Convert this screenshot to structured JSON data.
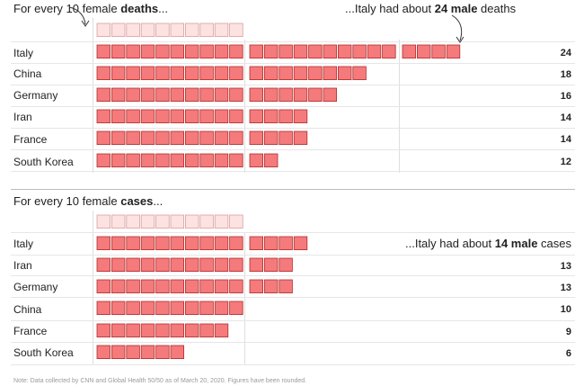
{
  "colors": {
    "male_fill": "#f47a7b",
    "male_stroke": "#b22d2d",
    "female_fill": "#fde2e2",
    "female_stroke": "#d9a0a0"
  },
  "chart_data": [
    {
      "type": "bar",
      "intro_prefix": "For every 10 female ",
      "intro_bold": "deaths",
      "intro_suffix": "...",
      "female_baseline": 10,
      "annotation": {
        "prefix": "...Italy had about ",
        "bold": "24 male",
        "suffix": " deaths"
      },
      "categories": [
        "Italy",
        "China",
        "Germany",
        "Iran",
        "France",
        "South Korea"
      ],
      "values": [
        24,
        18,
        16,
        14,
        14,
        12
      ],
      "value_labels": [
        "24",
        "18",
        "16",
        "14",
        "14",
        "12"
      ]
    },
    {
      "type": "bar",
      "intro_prefix": "For every 10 female ",
      "intro_bold": "cases",
      "intro_suffix": "...",
      "female_baseline": 10,
      "annotation": {
        "prefix": "...Italy had about ",
        "bold": "14 male",
        "suffix": " cases"
      },
      "categories": [
        "Italy",
        "Iran",
        "Germany",
        "China",
        "France",
        "South Korea"
      ],
      "values": [
        14,
        13,
        13,
        10,
        9,
        6
      ],
      "value_labels": [
        "",
        "13",
        "13",
        "10",
        "9",
        "6"
      ]
    }
  ],
  "note": "Note: Data collected by CNN and Global Health 50/50 as of March 20, 2020. Figures have been rounded."
}
